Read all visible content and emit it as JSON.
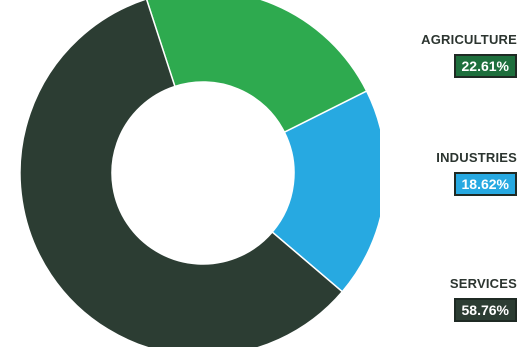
{
  "chart_data": {
    "type": "pie",
    "donut": true,
    "slices": [
      {
        "label": "AGRICULTURE",
        "value": 22.61,
        "value_text": "22.61%",
        "color": "#2eaa4f",
        "label_color": "#2c3530",
        "badge_color": "#1e6f3d"
      },
      {
        "label": "INDUSTRIES",
        "value": 18.62,
        "value_text": "18.62%",
        "color": "#27a9e1",
        "label_color": "#2c3530",
        "badge_color": "#27a9e1"
      },
      {
        "label": "SERVICES",
        "value": 58.76,
        "value_text": "58.76%",
        "color": "#2c3d33",
        "label_color": "#2c3530",
        "badge_color": "#2c3d33"
      }
    ],
    "legend_position": "right"
  }
}
